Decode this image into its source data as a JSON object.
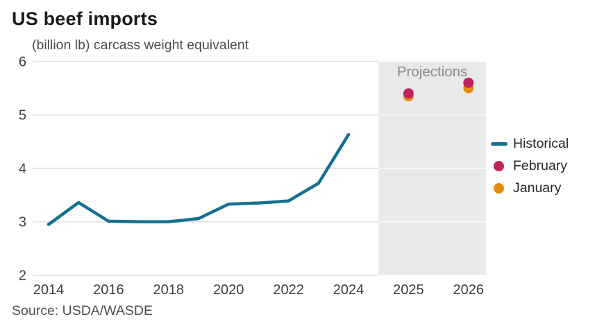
{
  "header": {
    "title": "US beef imports",
    "subtitle": "(billion lb) carcass weight equivalent"
  },
  "source": "Source: USDA/WASDE",
  "legend": [
    {
      "label": "Historical",
      "swatch": "line",
      "color": "#15708e"
    },
    {
      "label": "February",
      "swatch": "dot",
      "color": "#c0235e"
    },
    {
      "label": "January",
      "swatch": "dot",
      "color": "#e68b0c"
    }
  ],
  "colors": {
    "historical_line": "#15708e",
    "february_dot": "#c0235e",
    "january_dot": "#e68b0c",
    "projection_band": "#e9e9e9",
    "gridline": "#e2e2e2",
    "band_gridline": "#ffffff",
    "projection_label_text": "#8a8a8a",
    "tick_label_text": "#3d3d3d"
  },
  "chart_data": {
    "type": "line",
    "title": "US beef imports",
    "subtitle": "(billion lb) carcass weight equivalent",
    "ylabel": "billion lb carcass weight equivalent",
    "xlabel": "",
    "ylim": [
      2,
      6
    ],
    "yticks": [
      2,
      3,
      4,
      5,
      6
    ],
    "xticks": [
      2014,
      2016,
      2018,
      2020,
      2022,
      2024,
      2025,
      2026
    ],
    "grid": true,
    "legend_position": "right",
    "projection_label": "Projections",
    "projection_region": {
      "start_year": 2024.5,
      "end_year": 2026.5
    },
    "series": [
      {
        "name": "Historical",
        "type": "line",
        "color": "#15708e",
        "x": [
          2014,
          2015,
          2016,
          2017,
          2018,
          2019,
          2020,
          2021,
          2022,
          2023,
          2024
        ],
        "y": [
          2.95,
          3.36,
          3.01,
          3.0,
          3.0,
          3.06,
          3.33,
          3.35,
          3.39,
          3.72,
          4.63
        ]
      },
      {
        "name": "February",
        "type": "scatter",
        "color": "#c0235e",
        "x": [
          2025,
          2026
        ],
        "y": [
          5.4,
          5.6
        ]
      },
      {
        "name": "January",
        "type": "scatter",
        "color": "#e68b0c",
        "x": [
          2025,
          2026
        ],
        "y": [
          5.35,
          5.5
        ]
      }
    ]
  }
}
